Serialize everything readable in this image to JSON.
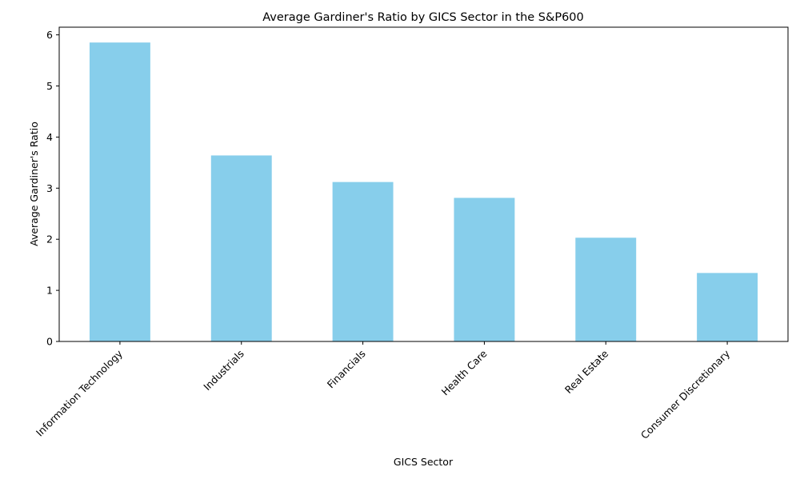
{
  "colors": {
    "bar": "#87ceeb",
    "axis": "#000000",
    "background": "#ffffff"
  },
  "chart_data": {
    "type": "bar",
    "title": "Average Gardiner's Ratio by GICS Sector in the S&P600",
    "xlabel": "GICS Sector",
    "ylabel": "Average Gardiner's Ratio",
    "categories": [
      "Information Technology",
      "Industrials",
      "Financials",
      "Health Care",
      "Real Estate",
      "Consumer Discretionary"
    ],
    "values": [
      5.85,
      3.64,
      3.12,
      2.81,
      2.03,
      1.34
    ],
    "ylim": [
      0,
      6.15
    ],
    "yticks": [
      0,
      1,
      2,
      3,
      4,
      5,
      6
    ],
    "ytick_labels": [
      "0",
      "1",
      "2",
      "3",
      "4",
      "5",
      "6"
    ],
    "grid": false,
    "legend": "none"
  }
}
